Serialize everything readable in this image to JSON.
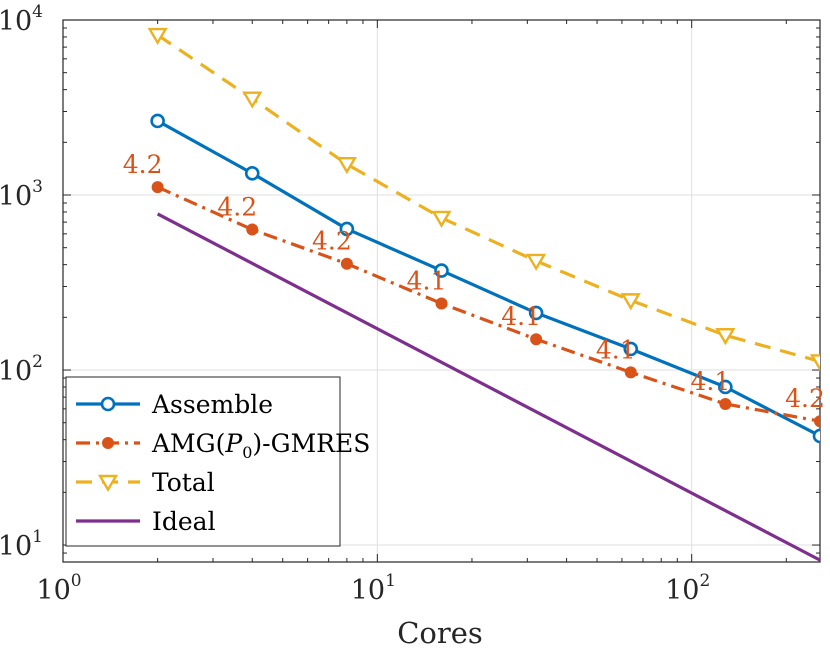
{
  "chart_data": {
    "type": "line",
    "title": "",
    "xlabel": "Cores",
    "ylabel": "",
    "xscale": "log",
    "yscale": "log",
    "xlim": [
      1,
      256
    ],
    "ylim": [
      8,
      10000
    ],
    "grid": true,
    "legend_position": "bottom-left",
    "x_ticks": [
      {
        "value": 1,
        "base": "10",
        "exp": "0"
      },
      {
        "value": 10,
        "base": "10",
        "exp": "1"
      },
      {
        "value": 100,
        "base": "10",
        "exp": "2"
      }
    ],
    "y_ticks": [
      {
        "value": 10,
        "base": "10",
        "exp": "1"
      },
      {
        "value": 100,
        "base": "10",
        "exp": "2"
      },
      {
        "value": 1000,
        "base": "10",
        "exp": "3"
      },
      {
        "value": 10000,
        "base": "10",
        "exp": "4"
      }
    ],
    "series": [
      {
        "name": "Assemble",
        "color": "#0072BD",
        "line": "solid",
        "marker": "circle",
        "x": [
          2,
          4,
          8,
          16,
          32,
          64,
          128,
          256
        ],
        "y": [
          2650,
          1330,
          640,
          370,
          212,
          132,
          80,
          42
        ]
      },
      {
        "name": "AMG(P0)-GMRES",
        "legend_label": {
          "pre": "AMG(",
          "var": "P",
          "sub": "0",
          "post": ")-GMRES"
        },
        "color": "#D95319",
        "line": "dashdot",
        "marker": "dot",
        "x": [
          2,
          4,
          8,
          16,
          32,
          64,
          128,
          256
        ],
        "y": [
          1110,
          635,
          405,
          240,
          150,
          97,
          64,
          51
        ],
        "point_labels": [
          "4.2",
          "4.2",
          "4.2",
          "4.1",
          "4.1",
          "4.1",
          "4.1",
          "4.2"
        ]
      },
      {
        "name": "Total",
        "color": "#EDB120",
        "line": "dashed",
        "marker": "triangle-down",
        "x": [
          2,
          4,
          8,
          16,
          32,
          64,
          128,
          256
        ],
        "y": [
          8200,
          3550,
          1500,
          740,
          420,
          250,
          158,
          112
        ]
      },
      {
        "name": "Ideal",
        "color": "#7E2F8E",
        "line": "solid",
        "marker": "none",
        "x": [
          2,
          256
        ],
        "y": [
          780,
          8.2
        ]
      }
    ]
  }
}
